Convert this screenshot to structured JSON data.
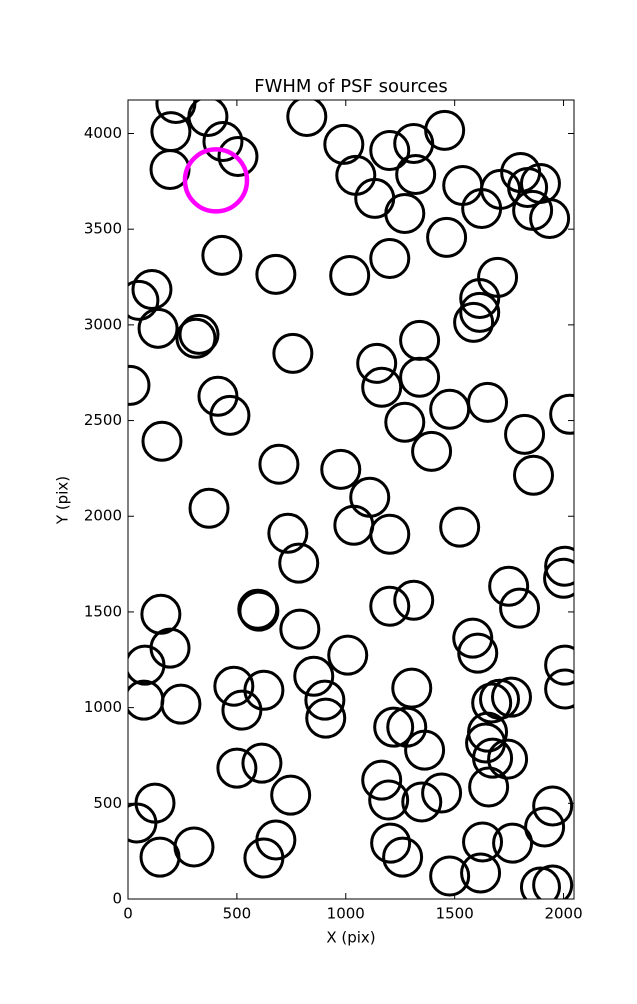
{
  "chart_data": {
    "type": "scatter",
    "title": "FWHM of PSF sources",
    "xlabel": "X (pix)",
    "ylabel": "Y (pix)",
    "xlim": [
      0,
      2048
    ],
    "ylim": [
      0,
      4175
    ],
    "xticks": [
      0,
      500,
      1000,
      1500,
      2000
    ],
    "yticks": [
      0,
      500,
      1000,
      1500,
      2000,
      2500,
      3000,
      3500,
      4000
    ],
    "grid": false,
    "color": "#000000",
    "x": [
      220,
      367,
      197,
      193,
      436,
      505,
      821,
      991,
      1046,
      1202,
      1312,
      1321,
      1454,
      1133,
      1271,
      1537,
      1463,
      1624,
      1711,
      1803,
      1835,
      1894,
      1858,
      1936,
      431,
      679,
      1018,
      1202,
      1697,
      50,
      110,
      138,
      326,
      312,
      757,
      1615,
      1615,
      1587,
      1339,
      1142,
      1165,
      1339,
      9,
      413,
      468,
      1271,
      1477,
      1651,
      1821,
      2028,
      156,
      1394,
      693,
      977,
      1862,
      372,
      1110,
      1037,
      1202,
      1523,
      734,
      784,
      2005,
      2000,
      1748,
      1798,
      151,
      596,
      601,
      1202,
      1312,
      789,
      1583,
      1606,
      193,
      78,
      1009,
      853,
      486,
      624,
      523,
      904,
      908,
      73,
      243,
      1303,
      2005,
      2005,
      1670,
      1706,
      1761,
      1220,
      1280,
      1651,
      1642,
      1674,
      1743,
      1362,
      615,
      500,
      747,
      124,
      41,
      1165,
      1197,
      1349,
      1440,
      1656,
      1950,
      1913,
      1206,
      1261,
      1628,
      1766,
      147,
      303,
      679,
      624,
      1477,
      1619,
      1894,
      1950
    ],
    "values": [
      4157,
      4089,
      4010,
      3812,
      3958,
      3880,
      4089,
      3943,
      3781,
      3911,
      3948,
      3786,
      4016,
      3661,
      3582,
      3728,
      3457,
      3608,
      3708,
      3796,
      3718,
      3739,
      3598,
      3556,
      3363,
      3264,
      3258,
      3347,
      3248,
      3128,
      3185,
      2982,
      2950,
      2930,
      2851,
      3138,
      3065,
      3013,
      2919,
      2799,
      2674,
      2726,
      2684,
      2627,
      2527,
      2491,
      2559,
      2595,
      2428,
      2533,
      2392,
      2339,
      2272,
      2245,
      2214,
      2042,
      2099,
      1953,
      1906,
      1943,
      1911,
      1755,
      1739,
      1676,
      1634,
      1520,
      1488,
      1514,
      1504,
      1530,
      1561,
      1410,
      1363,
      1285,
      1311,
      1222,
      1274,
      1164,
      1112,
      1091,
      987,
      1039,
      945,
      1039,
      1018,
      1102,
      1222,
      1097,
      1024,
      1044,
      1055,
      898,
      898,
      872,
      815,
      736,
      731,
      778,
      710,
      684,
      543,
      501,
      397,
      621,
      517,
      507,
      554,
      585,
      486,
      376,
      292,
      219,
      298,
      292,
      219,
      272,
      308,
      214,
      120,
      136,
      63,
      73
    ],
    "highlight": {
      "x": 404,
      "y": 3755,
      "color": "#ff00ff"
    }
  }
}
